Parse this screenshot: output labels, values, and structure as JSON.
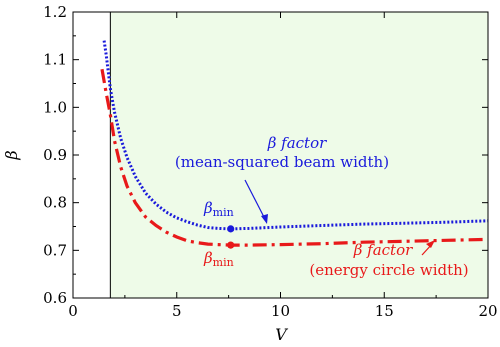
{
  "chart_data": {
    "type": "line",
    "title": "",
    "xlabel": "V",
    "ylabel": "β",
    "xlim": [
      0,
      20
    ],
    "ylim": [
      0.6,
      1.2
    ],
    "xticks": [
      0,
      5,
      10,
      15,
      20
    ],
    "yticks": [
      0.6,
      0.7,
      0.8,
      0.9,
      1.0,
      1.1,
      1.2
    ],
    "xtick_labels": [
      "0",
      "5",
      "10",
      "15",
      "20"
    ],
    "ytick_labels": [
      "0.6",
      "0.7",
      "0.8",
      "0.9",
      "1.0",
      "1.1",
      "1.2"
    ],
    "grid": false,
    "shaded_region": {
      "x_start": 1.8,
      "x_end": 20,
      "color": "#eefbe8"
    },
    "vertical_line_x": 1.8,
    "series": [
      {
        "style": "dotted",
        "color": "#1a1adb",
        "x": [
          1.5,
          1.6,
          1.8,
          2.0,
          2.3,
          2.6,
          3.0,
          3.5,
          4.0,
          4.5,
          5.0,
          5.5,
          6.0,
          6.5,
          7.0,
          7.6,
          8.5,
          10,
          12,
          14,
          16,
          18,
          20
        ],
        "y": [
          1.14,
          1.11,
          1.04,
          0.99,
          0.935,
          0.895,
          0.855,
          0.82,
          0.797,
          0.78,
          0.768,
          0.76,
          0.753,
          0.748,
          0.746,
          0.745,
          0.746,
          0.749,
          0.752,
          0.755,
          0.757,
          0.759,
          0.762
        ]
      },
      {
        "style": "dashdot",
        "color": "#e8191a",
        "x": [
          1.4,
          1.6,
          1.8,
          2.0,
          2.3,
          2.6,
          3.0,
          3.5,
          4.0,
          4.5,
          5.0,
          5.5,
          6.0,
          6.5,
          7.0,
          7.6,
          8.5,
          10,
          12,
          14,
          16,
          18,
          20
        ],
        "y": [
          1.08,
          1.03,
          0.985,
          0.93,
          0.875,
          0.835,
          0.8,
          0.77,
          0.752,
          0.738,
          0.728,
          0.72,
          0.716,
          0.713,
          0.712,
          0.711,
          0.711,
          0.712,
          0.714,
          0.717,
          0.719,
          0.721,
          0.723
        ]
      }
    ],
    "markers": [
      {
        "x": 7.6,
        "y": 0.745,
        "color": "#1a1adb"
      },
      {
        "x": 7.6,
        "y": 0.711,
        "color": "#e8191a"
      }
    ],
    "annotations": {
      "blue_title": "β factor",
      "blue_detail": "(mean-squared beam width)",
      "blue_min_beta": "β",
      "blue_min_sub": "min",
      "red_title": "β factor",
      "red_detail": "(energy circle width)",
      "red_min_beta": "β",
      "red_min_sub": "min"
    }
  }
}
